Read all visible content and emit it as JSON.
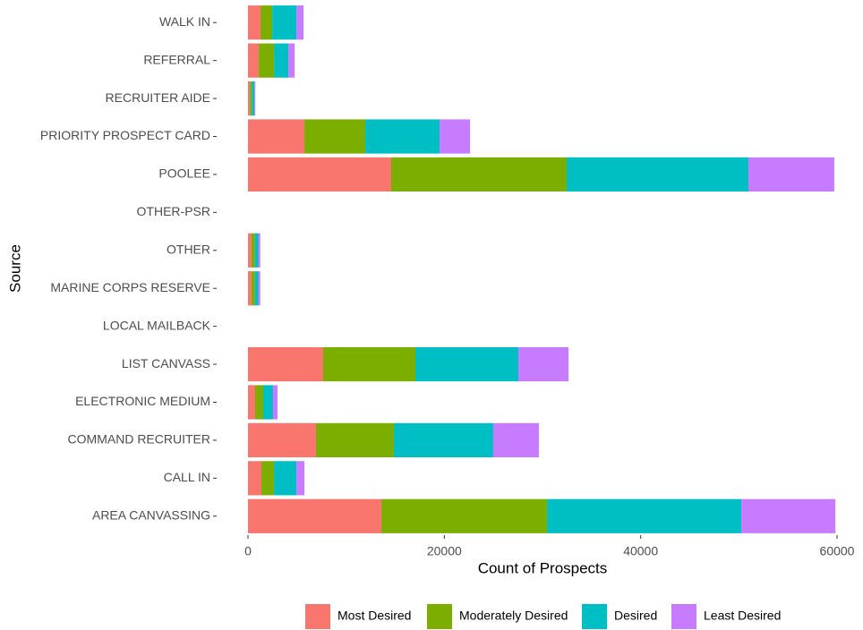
{
  "chart_data": {
    "type": "stacked_barh",
    "xlabel": "Count of Prospects",
    "ylabel": "Source",
    "categories": [
      "WALK IN",
      "REFERRAL",
      "RECRUITER AIDE",
      "PRIORITY PROSPECT CARD",
      "POOLEE",
      "OTHER-PSR",
      "OTHER",
      "MARINE CORPS RESERVE",
      "LOCAL MAILBACK",
      "LIST CANVASS",
      "ELECTRONIC MEDIUM",
      "COMMAND RECRUITER",
      "CALL IN",
      "AREA CANVASSING"
    ],
    "series": [
      {
        "name": "Most Desired",
        "color": "#F8766D",
        "values": [
          1280,
          1100,
          200,
          5750,
          14590,
          0,
          350,
          350,
          0,
          7660,
          730,
          6930,
          1370,
          13590
        ]
      },
      {
        "name": "Moderately Desired",
        "color": "#7CAE00",
        "values": [
          1190,
          1550,
          200,
          6200,
          17870,
          0,
          350,
          350,
          0,
          9390,
          820,
          7930,
          1280,
          16870
        ]
      },
      {
        "name": "Desired",
        "color": "#00BFC4",
        "values": [
          2460,
          1460,
          250,
          7570,
          18510,
          0,
          350,
          350,
          0,
          10490,
          1000,
          10120,
          2280,
          19790
        ]
      },
      {
        "name": "Least Desired",
        "color": "#C77CFF",
        "values": [
          730,
          640,
          100,
          3100,
          8750,
          0,
          200,
          200,
          0,
          5110,
          460,
          4650,
          820,
          9580
        ]
      }
    ],
    "xlim": [
      0,
      60000
    ],
    "xticks": [
      0,
      20000,
      40000,
      60000
    ],
    "legend": "bottom"
  }
}
